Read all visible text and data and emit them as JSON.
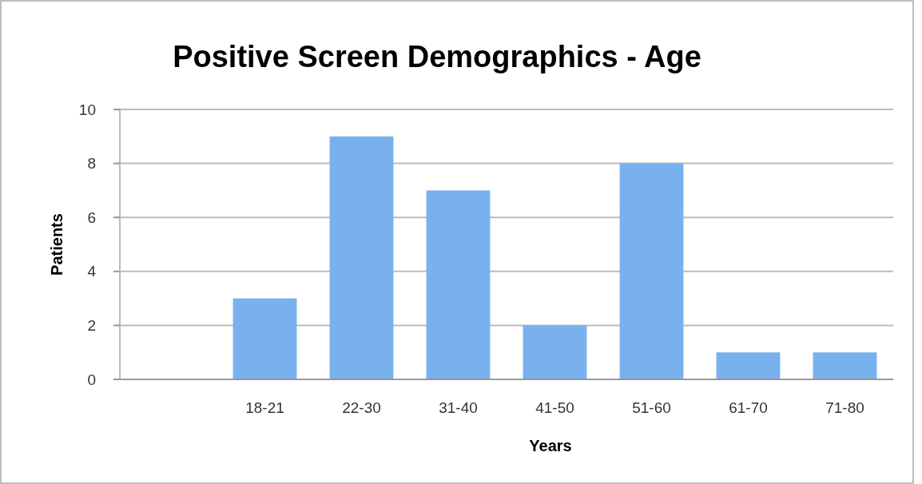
{
  "chart_data": {
    "type": "bar",
    "title": "Positive Screen Demographics - Age",
    "xlabel": "Years",
    "ylabel": "Patients",
    "categories": [
      null,
      "18-21",
      "22-30",
      "31-40",
      "41-50",
      "51-60",
      "61-70",
      "71-80"
    ],
    "values": [
      null,
      3,
      9,
      7,
      2,
      8,
      1,
      1
    ],
    "color": "#79b1ee",
    "ylim": [
      0,
      10
    ],
    "yticks": [
      0,
      2,
      4,
      6,
      8,
      10
    ],
    "grid": "y"
  }
}
